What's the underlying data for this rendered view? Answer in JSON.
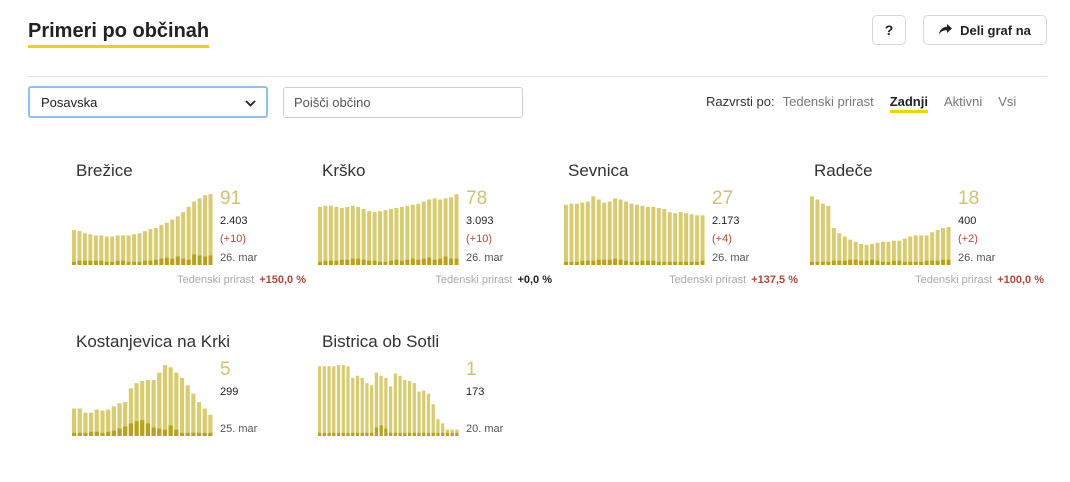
{
  "header": {
    "title": "Primeri po občinah",
    "help_label": "?",
    "share_label": "Deli graf na"
  },
  "filters": {
    "region_selected": "Posavska",
    "search_placeholder": "Poišči občino"
  },
  "sort": {
    "label": "Razvrsti po:",
    "options": [
      {
        "label": "Tedenski prirast",
        "active": false
      },
      {
        "label": "Zadnji",
        "active": true
      },
      {
        "label": "Aktivni",
        "active": false
      },
      {
        "label": "Vsi",
        "active": false
      }
    ]
  },
  "colors": {
    "accent_yellow": "#f0d400",
    "bar": "#d8cc6e",
    "bar_dark": "#b9a21a",
    "number": "#d2c170",
    "positive": "#b5473b",
    "select_border": "#8fc0ef"
  },
  "icons": {
    "share": "share-arrow-icon",
    "dropdown": "chevron-down-icon"
  },
  "weekly_label": "Tedenski prirast",
  "municipalities": [
    {
      "name": "Brežice",
      "active": "91",
      "total": "2.403",
      "delta": "(+10)",
      "date": "26. mar",
      "weekly": "+150,0 %",
      "weekly_sign": "pos",
      "bars": [
        33,
        32,
        30,
        29,
        28,
        28,
        27,
        27,
        28,
        28,
        28,
        29,
        30,
        32,
        34,
        35,
        38,
        40,
        43,
        46,
        50,
        55,
        60,
        63,
        66,
        67
      ],
      "dark": [
        3,
        4,
        4,
        4,
        4,
        4,
        3,
        3,
        4,
        4,
        3,
        3,
        3,
        4,
        4,
        5,
        6,
        7,
        6,
        8,
        6,
        5,
        10,
        9,
        8,
        9
      ]
    },
    {
      "name": "Krško",
      "active": "78",
      "total": "3.093",
      "delta": "(+10)",
      "date": "26. mar",
      "weekly": "+0,0 %",
      "weekly_sign": "zero",
      "bars": [
        55,
        56,
        56,
        55,
        54,
        55,
        56,
        55,
        53,
        51,
        50,
        51,
        52,
        53,
        54,
        55,
        56,
        57,
        58,
        60,
        62,
        63,
        62,
        63,
        64,
        67
      ],
      "dark": [
        3,
        4,
        4,
        4,
        5,
        5,
        6,
        6,
        5,
        4,
        4,
        3,
        3,
        4,
        5,
        4,
        5,
        6,
        5,
        6,
        7,
        5,
        6,
        8,
        6,
        6
      ]
    },
    {
      "name": "Sevnica",
      "active": "27",
      "total": "2.173",
      "delta": "(+4)",
      "date": "26. mar",
      "weekly": "+137,5 %",
      "weekly_sign": "pos",
      "bars": [
        57,
        58,
        58,
        59,
        60,
        65,
        62,
        59,
        60,
        63,
        62,
        60,
        58,
        57,
        56,
        55,
        55,
        54,
        53,
        50,
        49,
        50,
        49,
        48,
        47,
        47
      ],
      "dark": [
        3,
        3,
        3,
        4,
        4,
        4,
        5,
        5,
        5,
        6,
        5,
        4,
        3,
        3,
        4,
        4,
        4,
        3,
        3,
        3,
        3,
        3,
        3,
        3,
        3,
        4
      ]
    },
    {
      "name": "Radeče",
      "active": "18",
      "total": "400",
      "delta": "(+2)",
      "date": "26. mar",
      "weekly": "+100,0 %",
      "weekly_sign": "pos",
      "bars": [
        65,
        62,
        58,
        56,
        35,
        30,
        27,
        24,
        22,
        20,
        19,
        20,
        21,
        22,
        22,
        23,
        23,
        25,
        27,
        28,
        28,
        28,
        31,
        33,
        35,
        36
      ],
      "dark": [
        3,
        3,
        3,
        3,
        4,
        4,
        4,
        5,
        5,
        4,
        4,
        5,
        4,
        3,
        3,
        4,
        4,
        3,
        3,
        3,
        3,
        4,
        4,
        4,
        5,
        5
      ]
    },
    {
      "name": "Kostanjevica na Krki",
      "active": "5",
      "total": "299",
      "delta": "",
      "date": "25. mar",
      "weekly": "",
      "weekly_sign": "none",
      "bars": [
        26,
        26,
        22,
        22,
        25,
        24,
        25,
        28,
        31,
        32,
        45,
        50,
        52,
        53,
        53,
        60,
        67,
        65,
        60,
        55,
        48,
        40,
        32,
        26,
        20
      ],
      "dark": [
        3,
        3,
        3,
        4,
        4,
        3,
        4,
        5,
        7,
        9,
        12,
        14,
        15,
        12,
        8,
        7,
        6,
        10,
        6,
        3,
        3,
        3,
        3,
        3,
        3
      ]
    },
    {
      "name": "Bistrica ob Sotli",
      "active": "1",
      "total": "173",
      "delta": "",
      "date": "20. mar",
      "weekly": "",
      "weekly_sign": "none",
      "bars": [
        66,
        66,
        66,
        66,
        67,
        67,
        66,
        55,
        57,
        55,
        50,
        48,
        60,
        57,
        55,
        47,
        59,
        57,
        53,
        52,
        50,
        42,
        43,
        40,
        30,
        16,
        12,
        6,
        6,
        6
      ],
      "dark": [
        3,
        3,
        3,
        3,
        3,
        3,
        3,
        3,
        3,
        3,
        3,
        3,
        8,
        10,
        7,
        3,
        3,
        3,
        3,
        3,
        3,
        3,
        3,
        3,
        3,
        3,
        3,
        3,
        3,
        3
      ]
    }
  ]
}
